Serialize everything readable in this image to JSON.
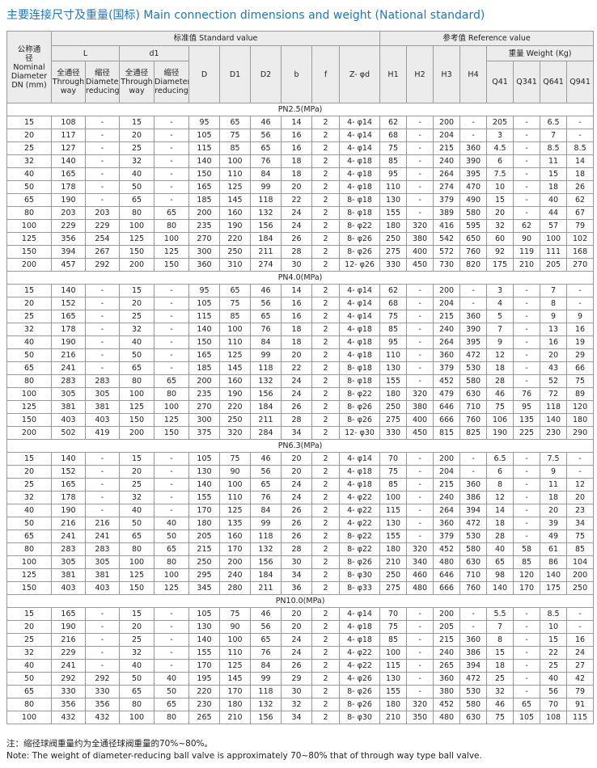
{
  "title": "主要连接尺寸及重量(国标) Main connection dimensions and weight (National standard)",
  "table": {
    "header": {
      "dn_cn": "公称通径",
      "dn_en": "Nominal Diameter DN (mm)",
      "standard": "标准值  Standard value",
      "reference": "参考值  Reference value",
      "L": "L",
      "d1": "d1",
      "weight": "重量  Weight (Kg)",
      "through_cn": "全通径",
      "through_en": "Through way",
      "reducing_cn": "缩径",
      "reducing_en": "Diameter-reducing",
      "D": "D",
      "D1": "D1",
      "D2": "D2",
      "b": "b",
      "f": "f",
      "Z": "Z- φd",
      "H1": "H1",
      "H2": "H2",
      "H3": "H3",
      "H4": "H4",
      "Q41": "Q41",
      "Q341": "Q341",
      "Q641": "Q641",
      "Q941": "Q941"
    },
    "sections": [
      {
        "label": "PN2.5(MPa)",
        "rows": [
          [
            "15",
            "108",
            "-",
            "15",
            "-",
            "95",
            "65",
            "46",
            "14",
            "2",
            "4- φ14",
            "62",
            "-",
            "200",
            "-",
            "205",
            "-",
            "6.5",
            "-"
          ],
          [
            "20",
            "117",
            "-",
            "20",
            "-",
            "105",
            "75",
            "56",
            "16",
            "2",
            "4- φ14",
            "68",
            "-",
            "204",
            "-",
            "3",
            "-",
            "7",
            "-"
          ],
          [
            "25",
            "127",
            "-",
            "25",
            "-",
            "115",
            "85",
            "65",
            "16",
            "2",
            "4- φ14",
            "75",
            "-",
            "215",
            "360",
            "4.5",
            "-",
            "8.5",
            "8.5"
          ],
          [
            "32",
            "140",
            "-",
            "32",
            "-",
            "140",
            "100",
            "76",
            "18",
            "2",
            "4- φ18",
            "85",
            "-",
            "240",
            "390",
            "6",
            "-",
            "11",
            "14"
          ],
          [
            "40",
            "165",
            "-",
            "40",
            "-",
            "150",
            "110",
            "84",
            "18",
            "2",
            "4- φ18",
            "95",
            "-",
            "264",
            "395",
            "7.5",
            "-",
            "15",
            "18"
          ],
          [
            "50",
            "178",
            "-",
            "50",
            "-",
            "165",
            "125",
            "99",
            "20",
            "2",
            "4- φ18",
            "110",
            "-",
            "274",
            "470",
            "10",
            "-",
            "18",
            "26"
          ],
          [
            "65",
            "190",
            "-",
            "65",
            "-",
            "185",
            "145",
            "118",
            "22",
            "2",
            "8- φ18",
            "130",
            "-",
            "379",
            "490",
            "15",
            "-",
            "40",
            "62"
          ],
          [
            "80",
            "203",
            "203",
            "80",
            "65",
            "200",
            "160",
            "132",
            "24",
            "2",
            "8- φ18",
            "155",
            "-",
            "389",
            "580",
            "20",
            "-",
            "44",
            "67"
          ],
          [
            "100",
            "229",
            "229",
            "100",
            "80",
            "235",
            "190",
            "156",
            "24",
            "2",
            "8- φ22",
            "180",
            "320",
            "416",
            "595",
            "32",
            "62",
            "57",
            "79"
          ],
          [
            "125",
            "356",
            "254",
            "125",
            "100",
            "270",
            "220",
            "184",
            "26",
            "2",
            "8- φ26",
            "250",
            "380",
            "542",
            "650",
            "60",
            "90",
            "100",
            "102"
          ],
          [
            "150",
            "394",
            "267",
            "150",
            "125",
            "300",
            "250",
            "211",
            "28",
            "2",
            "8- φ26",
            "275",
            "400",
            "572",
            "760",
            "92",
            "119",
            "111",
            "168"
          ],
          [
            "200",
            "457",
            "292",
            "200",
            "150",
            "360",
            "310",
            "274",
            "30",
            "2",
            "12- φ26",
            "330",
            "450",
            "730",
            "820",
            "175",
            "210",
            "205",
            "270"
          ]
        ]
      },
      {
        "label": "PN4.0(MPa)",
        "rows": [
          [
            "15",
            "140",
            "-",
            "15",
            "-",
            "95",
            "65",
            "46",
            "14",
            "2",
            "4- φ14",
            "62",
            "-",
            "200",
            "-",
            "3",
            "-",
            "7",
            "-"
          ],
          [
            "20",
            "152",
            "-",
            "20",
            "-",
            "105",
            "75",
            "56",
            "16",
            "2",
            "4- φ14",
            "68",
            "-",
            "204",
            "-",
            "4",
            "-",
            "8",
            "-"
          ],
          [
            "25",
            "165",
            "-",
            "25",
            "-",
            "115",
            "85",
            "65",
            "16",
            "2",
            "4- φ14",
            "75",
            "-",
            "215",
            "360",
            "5",
            "-",
            "9",
            "9"
          ],
          [
            "32",
            "178",
            "-",
            "32",
            "-",
            "140",
            "100",
            "76",
            "18",
            "2",
            "4- φ18",
            "85",
            "-",
            "240",
            "390",
            "7",
            "-",
            "13",
            "16"
          ],
          [
            "40",
            "190",
            "-",
            "40",
            "-",
            "150",
            "110",
            "84",
            "18",
            "2",
            "4- φ18",
            "95",
            "-",
            "264",
            "395",
            "9",
            "-",
            "16",
            "19"
          ],
          [
            "50",
            "216",
            "-",
            "50",
            "-",
            "165",
            "125",
            "99",
            "20",
            "2",
            "4- φ18",
            "110",
            "-",
            "360",
            "472",
            "12",
            "-",
            "20",
            "29"
          ],
          [
            "65",
            "241",
            "-",
            "65",
            "-",
            "185",
            "145",
            "118",
            "22",
            "2",
            "8- φ18",
            "130",
            "-",
            "379",
            "530",
            "18",
            "-",
            "43",
            "66"
          ],
          [
            "80",
            "283",
            "283",
            "80",
            "65",
            "200",
            "160",
            "132",
            "24",
            "2",
            "8- φ18",
            "155",
            "-",
            "452",
            "580",
            "28",
            "-",
            "52",
            "75"
          ],
          [
            "100",
            "305",
            "305",
            "100",
            "80",
            "235",
            "190",
            "156",
            "24",
            "2",
            "8- φ22",
            "180",
            "320",
            "479",
            "630",
            "46",
            "76",
            "72",
            "89"
          ],
          [
            "125",
            "381",
            "381",
            "125",
            "100",
            "270",
            "220",
            "184",
            "26",
            "2",
            "8- φ26",
            "250",
            "380",
            "646",
            "710",
            "75",
            "95",
            "118",
            "120"
          ],
          [
            "150",
            "403",
            "403",
            "150",
            "125",
            "300",
            "250",
            "211",
            "28",
            "2",
            "8- φ26",
            "275",
            "400",
            "666",
            "760",
            "106",
            "135",
            "140",
            "180"
          ],
          [
            "200",
            "502",
            "419",
            "200",
            "150",
            "375",
            "320",
            "284",
            "34",
            "2",
            "12- φ30",
            "330",
            "450",
            "815",
            "825",
            "190",
            "225",
            "230",
            "290"
          ]
        ]
      },
      {
        "label": "PN6.3(MPa)",
        "rows": [
          [
            "15",
            "140",
            "-",
            "15",
            "-",
            "105",
            "75",
            "46",
            "20",
            "2",
            "4- φ14",
            "70",
            "-",
            "200",
            "-",
            "6.5",
            "-",
            "7.5",
            "-"
          ],
          [
            "20",
            "152",
            "-",
            "20",
            "-",
            "130",
            "90",
            "56",
            "20",
            "2",
            "4- φ18",
            "75",
            "-",
            "204",
            "-",
            "6",
            "-",
            "9",
            "-"
          ],
          [
            "25",
            "165",
            "-",
            "25",
            "-",
            "140",
            "100",
            "65",
            "24",
            "2",
            "4- φ18",
            "85",
            "-",
            "215",
            "360",
            "8",
            "-",
            "11",
            "12"
          ],
          [
            "32",
            "178",
            "-",
            "32",
            "-",
            "155",
            "110",
            "76",
            "24",
            "2",
            "4- φ22",
            "100",
            "-",
            "240",
            "386",
            "12",
            "-",
            "18",
            "20"
          ],
          [
            "40",
            "190",
            "-",
            "40",
            "-",
            "170",
            "125",
            "84",
            "26",
            "2",
            "4- φ22",
            "115",
            "-",
            "264",
            "394",
            "14",
            "-",
            "20",
            "23"
          ],
          [
            "50",
            "216",
            "216",
            "50",
            "40",
            "180",
            "135",
            "99",
            "26",
            "2",
            "4- φ22",
            "130",
            "-",
            "360",
            "472",
            "18",
            "-",
            "39",
            "34"
          ],
          [
            "65",
            "241",
            "241",
            "65",
            "50",
            "205",
            "160",
            "118",
            "26",
            "2",
            "8- φ22",
            "155",
            "-",
            "379",
            "530",
            "28",
            "-",
            "49",
            "75"
          ],
          [
            "80",
            "283",
            "283",
            "80",
            "65",
            "215",
            "170",
            "132",
            "28",
            "2",
            "8- φ22",
            "180",
            "320",
            "452",
            "580",
            "40",
            "58",
            "61",
            "85"
          ],
          [
            "100",
            "305",
            "305",
            "100",
            "80",
            "250",
            "200",
            "156",
            "30",
            "2",
            "8- φ26",
            "210",
            "340",
            "480",
            "630",
            "65",
            "85",
            "86",
            "104"
          ],
          [
            "125",
            "381",
            "381",
            "125",
            "100",
            "295",
            "240",
            "184",
            "34",
            "2",
            "8- φ30",
            "250",
            "460",
            "646",
            "710",
            "98",
            "120",
            "140",
            "200"
          ],
          [
            "150",
            "403",
            "403",
            "150",
            "125",
            "345",
            "280",
            "211",
            "36",
            "2",
            "8- φ33",
            "275",
            "480",
            "666",
            "760",
            "140",
            "170",
            "175",
            "250"
          ]
        ]
      },
      {
        "label": "PN10.0(MPa)",
        "rows": [
          [
            "15",
            "165",
            "-",
            "15",
            "-",
            "105",
            "75",
            "46",
            "20",
            "2",
            "4- φ14",
            "70",
            "-",
            "200",
            "-",
            "5.5",
            "-",
            "8.5",
            "-"
          ],
          [
            "20",
            "190",
            "-",
            "20",
            "-",
            "130",
            "90",
            "56",
            "20",
            "2",
            "4- φ18",
            "75",
            "-",
            "205",
            "-",
            "7",
            "-",
            "10",
            "-"
          ],
          [
            "25",
            "216",
            "-",
            "25",
            "-",
            "140",
            "100",
            "65",
            "24",
            "2",
            "4- φ18",
            "85",
            "-",
            "215",
            "360",
            "8",
            "-",
            "15",
            "16"
          ],
          [
            "32",
            "229",
            "-",
            "32",
            "-",
            "155",
            "110",
            "76",
            "24",
            "2",
            "4- φ22",
            "100",
            "-",
            "240",
            "386",
            "15",
            "-",
            "22",
            "24"
          ],
          [
            "40",
            "241",
            "-",
            "40",
            "-",
            "170",
            "125",
            "84",
            "26",
            "2",
            "4- φ22",
            "115",
            "-",
            "265",
            "394",
            "18",
            "-",
            "25",
            "27"
          ],
          [
            "50",
            "292",
            "292",
            "50",
            "40",
            "195",
            "145",
            "99",
            "29",
            "2",
            "4- φ26",
            "130",
            "-",
            "360",
            "472",
            "25",
            "-",
            "40",
            "42"
          ],
          [
            "65",
            "330",
            "330",
            "65",
            "50",
            "220",
            "170",
            "118",
            "30",
            "2",
            "8- φ26",
            "155",
            "-",
            "380",
            "530",
            "32",
            "-",
            "56",
            "79"
          ],
          [
            "80",
            "356",
            "356",
            "80",
            "65",
            "230",
            "180",
            "132",
            "32",
            "2",
            "8- φ26",
            "180",
            "320",
            "452",
            "580",
            "46",
            "65",
            "70",
            "91"
          ],
          [
            "100",
            "432",
            "432",
            "100",
            "80",
            "265",
            "210",
            "156",
            "34",
            "2",
            "8- φ30",
            "210",
            "350",
            "480",
            "630",
            "75",
            "105",
            "108",
            "115"
          ]
        ]
      }
    ]
  },
  "notes": [
    "注：缩径球阀重量约为全通径球阀重量的70%~80%。",
    "Note: The weight of diameter-reducing ball valve is approximately 70~80% that of through way type ball valve."
  ]
}
